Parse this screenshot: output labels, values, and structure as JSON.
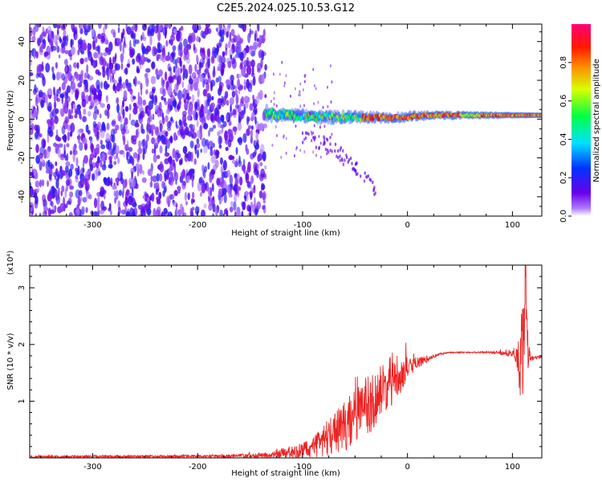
{
  "title": "C2E5.2024.025.10.53.G12",
  "colors": {
    "snr_line": "#ee2222",
    "noise_purple": "#7a1fe0",
    "axis": "#000000"
  },
  "chart_data": [
    {
      "type": "heatmap",
      "xlabel": "Height of straight line (km)",
      "ylabel": "Frequency (Hz)",
      "xlim": [
        -360,
        128
      ],
      "ylim": [
        -50,
        49
      ],
      "xticks": [
        "-300",
        "-200",
        "-100",
        "0",
        "100"
      ],
      "yticks": [
        "40",
        "20",
        "0",
        "-20",
        "-40"
      ],
      "grid": false,
      "colorbar": {
        "label": "Normalized spectral amplitude",
        "range": [
          0,
          1
        ],
        "ticks": [
          "0.0",
          "0.2",
          "0.4",
          "0.6",
          "0.8"
        ],
        "colormap": "rainbow (purple → blue → cyan → green → yellow → orange → red → magenta)"
      },
      "features": [
        {
          "name": "broadband noise",
          "x_range": [
            -360,
            -135
          ],
          "freq_range": [
            -50,
            49
          ],
          "amplitude": 0.15
        },
        {
          "name": "carrier trace",
          "x_range": [
            -135,
            128
          ],
          "freq_center": [
            3,
            2,
            1,
            1,
            1,
            1,
            2,
            2,
            2,
            2,
            2
          ],
          "x_points": [
            -135,
            -110,
            -80,
            -50,
            -30,
            -10,
            20,
            50,
            80,
            100,
            128
          ],
          "peak_amplitude": 0.9
        },
        {
          "name": "faint tail",
          "x_points": [
            -100,
            -70,
            -50,
            -40,
            -30
          ],
          "freq_center": [
            -8,
            -15,
            -25,
            -30,
            -36
          ],
          "amplitude": 0.1
        }
      ]
    },
    {
      "type": "line",
      "xlabel": "Height of straight line (km)",
      "ylabel": "SNR (10 * v/v)",
      "yscale_note": "(x10⁴)",
      "xlim": [
        -360,
        128
      ],
      "ylim": [
        0,
        3.4
      ],
      "xticks": [
        "-300",
        "-200",
        "-100",
        "0",
        "100"
      ],
      "yticks": [
        "1",
        "2",
        "3"
      ],
      "grid": false,
      "series": [
        {
          "x": [
            -360,
            -200,
            -130,
            -120,
            -100,
            -90,
            -80,
            -70,
            -60,
            -50,
            -40,
            -30,
            -20,
            -15,
            -10,
            -5,
            0,
            10,
            20,
            30,
            40,
            60,
            80,
            100,
            105,
            108,
            110,
            112,
            115,
            120,
            128
          ],
          "y": [
            0.02,
            0.03,
            0.04,
            0.08,
            0.12,
            0.2,
            0.3,
            0.45,
            0.55,
            0.75,
            0.9,
            1.05,
            1.3,
            1.4,
            1.5,
            1.45,
            1.58,
            1.68,
            1.75,
            1.83,
            1.86,
            1.86,
            1.86,
            1.83,
            1.8,
            1.6,
            1.9,
            3.3,
            1.75,
            1.76,
            1.78
          ],
          "noise": [
            0.02,
            0.02,
            0.05,
            0.1,
            0.15,
            0.2,
            0.3,
            0.35,
            0.45,
            0.5,
            0.55,
            0.5,
            0.45,
            0.5,
            0.4,
            0.3,
            0.2,
            0.1,
            0.05,
            0.02,
            0.01,
            0.01,
            0.02,
            0.05,
            0.3,
            0.8,
            1.2,
            1.0,
            0.3,
            0.03,
            0.02
          ]
        }
      ]
    }
  ]
}
